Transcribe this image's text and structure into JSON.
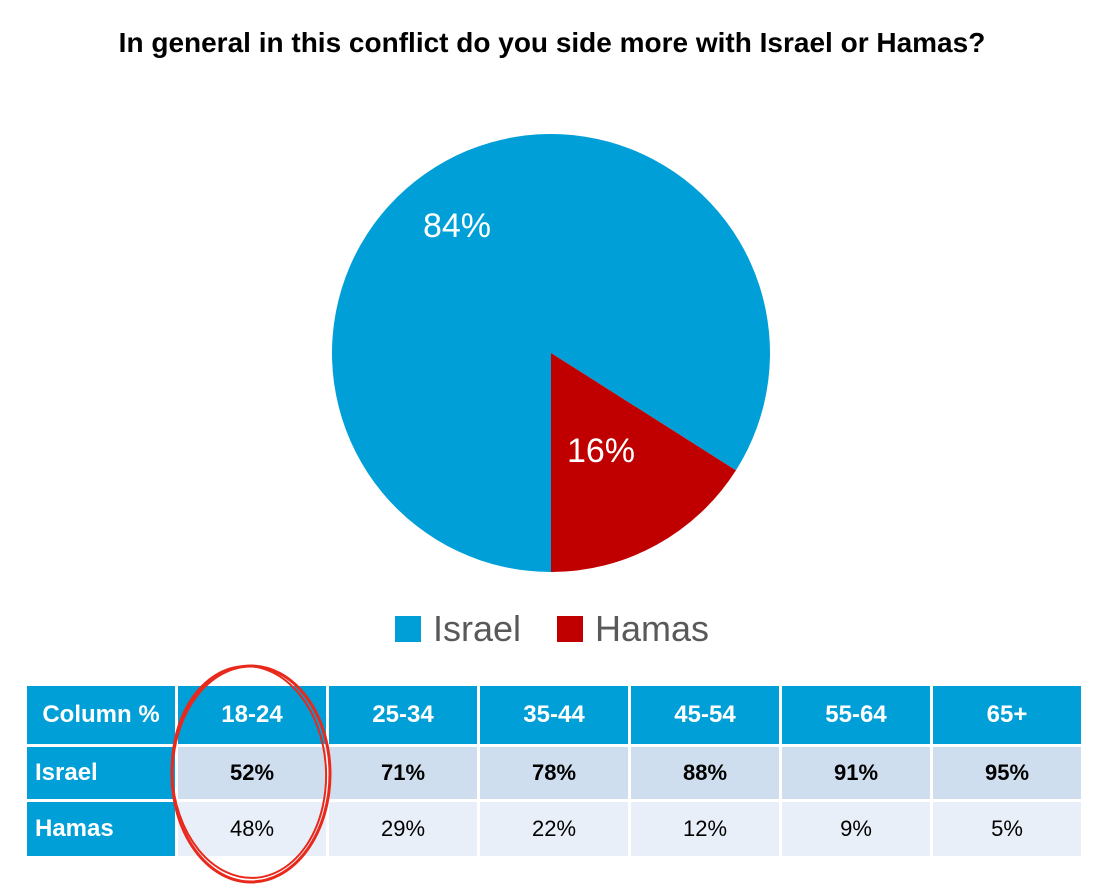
{
  "chart_data": {
    "type": "pie",
    "title": "In general in this conflict do you side more with Israel or Hamas?",
    "slices": [
      {
        "label": "Israel",
        "value": 84,
        "display": "84%",
        "color": "#009fd7"
      },
      {
        "label": "Hamas",
        "value": 16,
        "display": "16%",
        "color": "#c00000"
      }
    ],
    "legend_position": "bottom"
  },
  "table": {
    "corner": "Column %",
    "columns": [
      "18-24",
      "25-34",
      "35-44",
      "45-54",
      "55-64",
      "65+"
    ],
    "rows": [
      {
        "label": "Israel",
        "cells": [
          "52%",
          "71%",
          "78%",
          "88%",
          "91%",
          "95%"
        ]
      },
      {
        "label": "Hamas",
        "cells": [
          "48%",
          "29%",
          "22%",
          "12%",
          "9%",
          "5%"
        ]
      }
    ],
    "highlight_column": "18-24",
    "highlight_color": "#e8291c"
  }
}
